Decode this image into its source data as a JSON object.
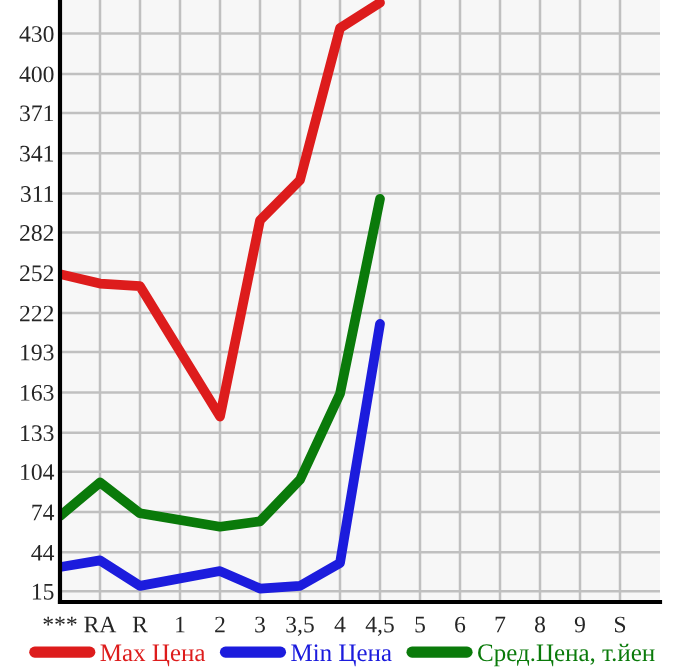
{
  "chart_data": {
    "type": "line",
    "categories": [
      "***",
      "RA",
      "R",
      "1",
      "2",
      "3",
      "3,5",
      "4",
      "4,5",
      "5",
      "6",
      "7",
      "8",
      "9",
      "S"
    ],
    "series": [
      {
        "name": "Max Цена",
        "color": "#dd1c1c",
        "values": [
          251,
          244,
          242,
          null,
          145,
          291,
          321,
          434,
          453,
          null,
          null,
          null,
          null,
          null,
          null
        ]
      },
      {
        "name": "Min Цена",
        "color": "#1c1cdd",
        "values": [
          33,
          38,
          19,
          null,
          30,
          17,
          19,
          36,
          214,
          null,
          null,
          null,
          null,
          null,
          null
        ]
      },
      {
        "name": "Сред.Цена, т.йен",
        "color": "#0a7a0a",
        "values": [
          71,
          96,
          73,
          null,
          63,
          67,
          98,
          162,
          307,
          null,
          null,
          null,
          null,
          null,
          null
        ]
      }
    ],
    "ylim": [
      7,
      455
    ],
    "yticks": [
      15,
      44,
      74,
      104,
      133,
      163,
      193,
      222,
      252,
      282,
      311,
      341,
      371,
      400,
      430
    ],
    "grid": true,
    "legend": "bottom",
    "marker": "none",
    "line_style": "solid"
  }
}
